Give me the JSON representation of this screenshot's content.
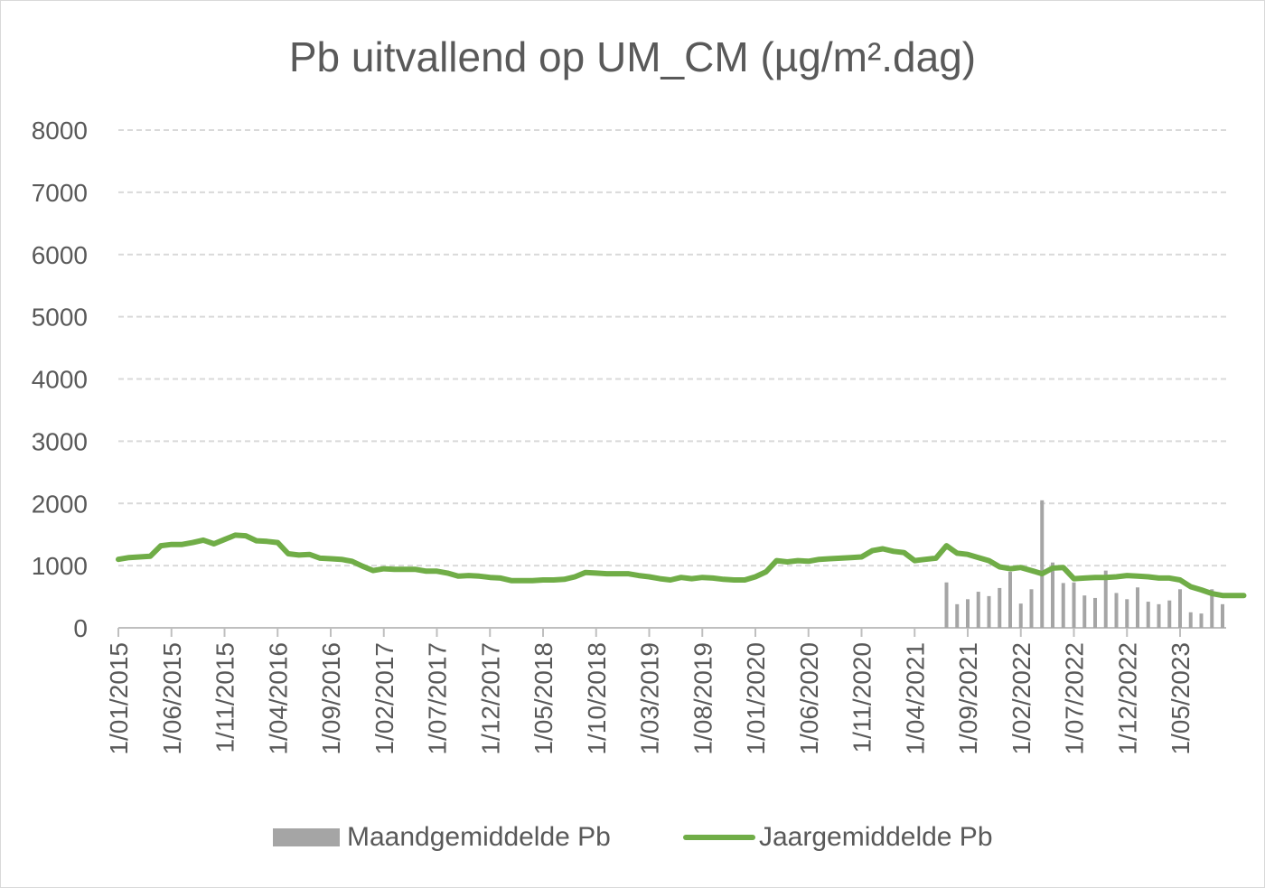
{
  "chart_data": {
    "type": "bar+line",
    "title": "Pb uitvallend op UM_CM (µg/m².dag)",
    "xlabel": "",
    "ylabel": "",
    "ylim": [
      0,
      8000
    ],
    "yticks": [
      0,
      1000,
      2000,
      3000,
      4000,
      5000,
      6000,
      7000,
      8000
    ],
    "grid": true,
    "legend_position": "bottom",
    "x_tick_labels": [
      "1/01/2015",
      "1/06/2015",
      "1/11/2015",
      "1/04/2016",
      "1/09/2016",
      "1/02/2017",
      "1/07/2017",
      "1/12/2017",
      "1/05/2018",
      "1/10/2018",
      "1/03/2019",
      "1/08/2019",
      "1/01/2020",
      "1/06/2020",
      "1/11/2020",
      "1/04/2021",
      "1/09/2021",
      "1/02/2022",
      "1/07/2022",
      "1/12/2022",
      "1/05/2023"
    ],
    "month_start": "2015-01",
    "month_count": 105,
    "series": [
      {
        "name": "Maandgemiddelde Pb",
        "kind": "bar",
        "color": "#a5a5a5",
        "start_month_index": 78,
        "values": [
          730,
          380,
          460,
          580,
          510,
          640,
          900,
          390,
          620,
          2050,
          1050,
          720,
          730,
          520,
          480,
          920,
          560,
          460,
          650,
          420,
          380,
          440,
          620,
          250,
          230,
          620,
          380
        ]
      },
      {
        "name": "Jaargemiddelde Pb",
        "kind": "line",
        "color": "#70ad47",
        "start_month_index": 0,
        "values": [
          1100,
          1130,
          1140,
          1150,
          1320,
          1340,
          1340,
          1370,
          1410,
          1350,
          1420,
          1490,
          1480,
          1400,
          1390,
          1370,
          1190,
          1170,
          1180,
          1120,
          1110,
          1100,
          1070,
          990,
          920,
          950,
          940,
          940,
          940,
          910,
          910,
          880,
          830,
          840,
          830,
          810,
          800,
          760,
          760,
          760,
          770,
          770,
          780,
          820,
          890,
          880,
          870,
          870,
          870,
          840,
          820,
          790,
          770,
          810,
          790,
          810,
          800,
          780,
          770,
          770,
          820,
          900,
          1080,
          1060,
          1080,
          1070,
          1100,
          1110,
          1120,
          1130,
          1140,
          1240,
          1270,
          1230,
          1210,
          1080,
          1100,
          1120,
          1320,
          1200,
          1180,
          1130,
          1080,
          980,
          950,
          970,
          920,
          870,
          960,
          970,
          790,
          800,
          810,
          810,
          820,
          840,
          830,
          820,
          800,
          800,
          770,
          660,
          610,
          550,
          520,
          520,
          520
        ]
      }
    ]
  }
}
